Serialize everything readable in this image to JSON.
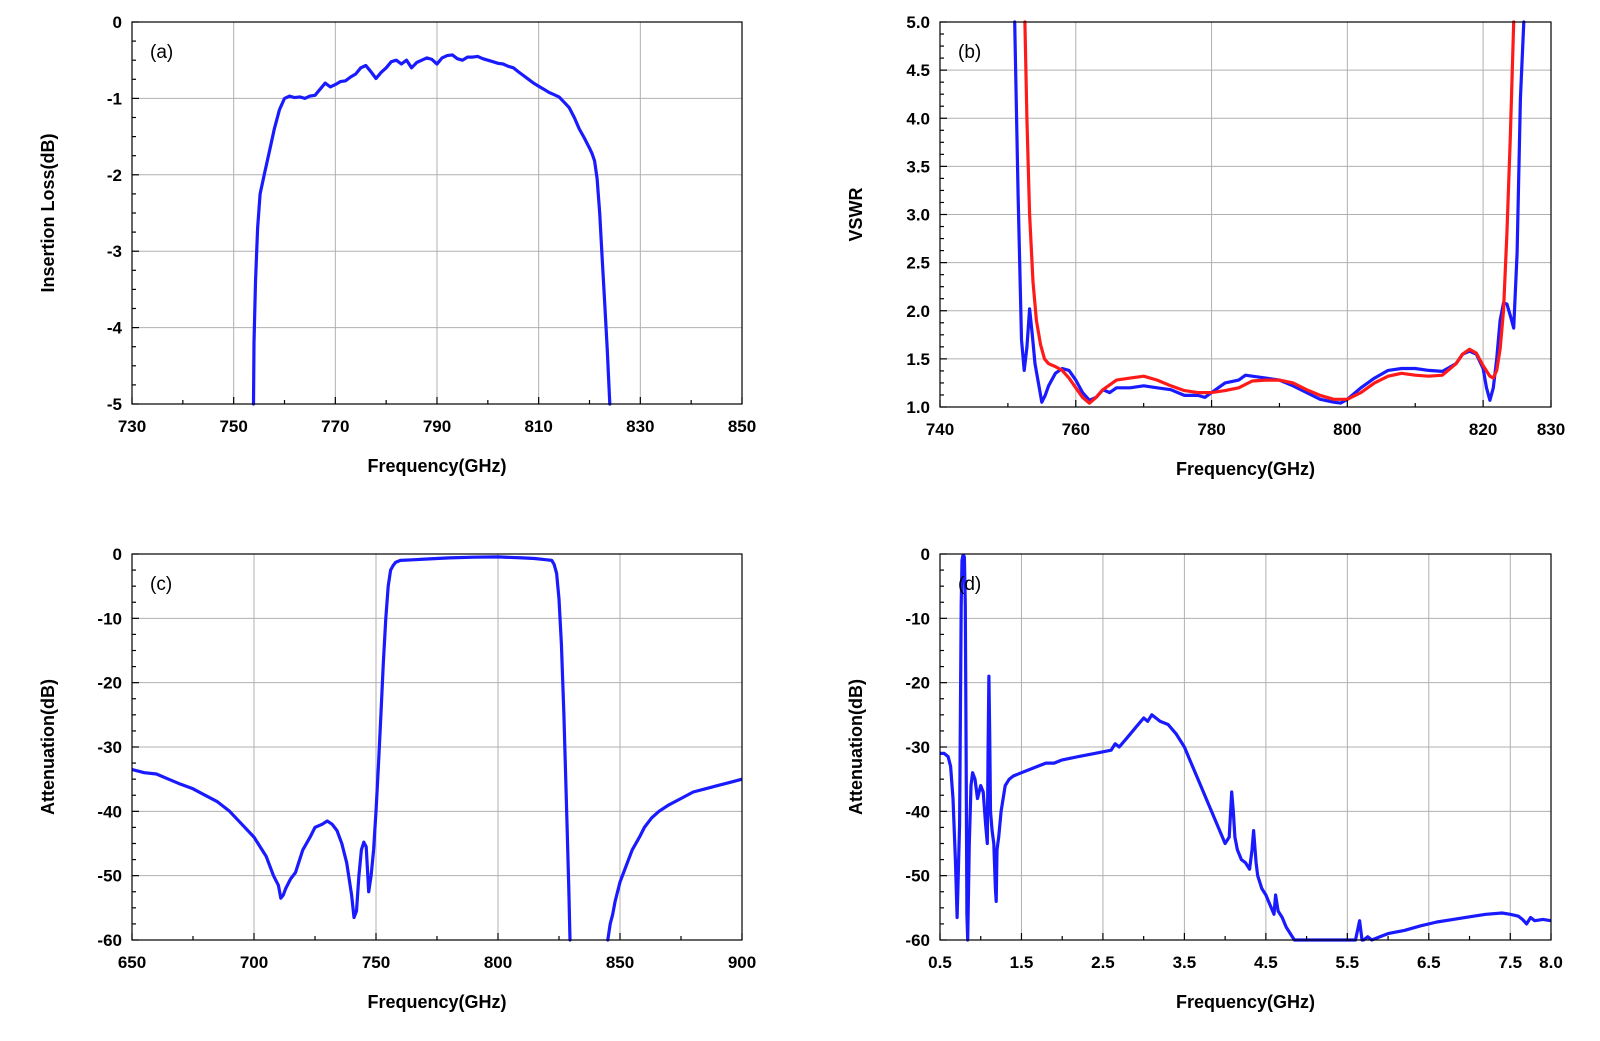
{
  "chart_data": [
    {
      "type": "line",
      "panel_label": "(a)",
      "xlabel": "Frequency(GHz)",
      "ylabel": "Insertion Loss(dB)",
      "xlim": [
        730,
        850
      ],
      "ylim": [
        -5,
        0
      ],
      "xticks": [
        730,
        750,
        770,
        790,
        810,
        830,
        850
      ],
      "xtick_labels": [
        "730",
        "750",
        "770",
        "790",
        "810",
        "830",
        "850"
      ],
      "yticks": [
        0,
        -1,
        -2,
        -3,
        -4,
        -5
      ],
      "ytick_labels": [
        "0",
        "-1",
        "-2",
        "-3",
        "-4",
        "-5"
      ],
      "grid": true,
      "series": [
        {
          "color": "#1a1aff",
          "x": [
            753.9,
            754.0,
            754.3,
            754.7,
            755.2,
            756.0,
            757.0,
            758.0,
            759.0,
            760.0,
            761.0,
            762.0,
            763.0,
            764.0,
            765.0,
            766.0,
            767.0,
            768.0,
            769.0,
            770.0,
            771.0,
            772.0,
            773.0,
            774.0,
            775.0,
            776.0,
            777.0,
            778.0,
            779.0,
            780.0,
            781.0,
            782.0,
            783.0,
            784.0,
            785.0,
            786.0,
            787.0,
            788.0,
            789.0,
            790.0,
            791.0,
            792.0,
            793.0,
            794.0,
            795.0,
            796.0,
            797.0,
            798.0,
            799.0,
            800.0,
            801.0,
            802.0,
            803.0,
            804.0,
            805.0,
            806.0,
            807.0,
            808.0,
            809.0,
            810.0,
            811.0,
            812.0,
            813.0,
            814.0,
            815.0,
            816.0,
            817.0,
            818.0,
            819.0,
            820.0,
            820.5,
            821.0,
            821.5,
            822.0,
            822.5,
            823.0,
            823.5,
            824.0
          ],
          "y": [
            -5.0,
            -4.2,
            -3.4,
            -2.7,
            -2.25,
            -2.0,
            -1.7,
            -1.4,
            -1.15,
            -1.0,
            -0.97,
            -0.99,
            -0.98,
            -1.0,
            -0.97,
            -0.96,
            -0.88,
            -0.8,
            -0.85,
            -0.82,
            -0.78,
            -0.77,
            -0.72,
            -0.68,
            -0.6,
            -0.57,
            -0.65,
            -0.74,
            -0.66,
            -0.6,
            -0.52,
            -0.5,
            -0.55,
            -0.5,
            -0.6,
            -0.53,
            -0.5,
            -0.47,
            -0.49,
            -0.55,
            -0.47,
            -0.44,
            -0.43,
            -0.48,
            -0.5,
            -0.46,
            -0.46,
            -0.45,
            -0.48,
            -0.5,
            -0.52,
            -0.54,
            -0.55,
            -0.58,
            -0.6,
            -0.65,
            -0.7,
            -0.75,
            -0.8,
            -0.84,
            -0.88,
            -0.92,
            -0.95,
            -0.98,
            -1.05,
            -1.12,
            -1.25,
            -1.4,
            -1.52,
            -1.65,
            -1.72,
            -1.82,
            -2.05,
            -2.5,
            -3.1,
            -3.7,
            -4.3,
            -5.0
          ]
        }
      ]
    },
    {
      "type": "line",
      "panel_label": "(b)",
      "xlabel": "Frequency(GHz)",
      "ylabel": "VSWR",
      "xlim": [
        740,
        830
      ],
      "ylim": [
        1.0,
        5.0
      ],
      "xticks": [
        740,
        760,
        780,
        800,
        820,
        830
      ],
      "xtick_labels": [
        "740",
        "760",
        "780",
        "800",
        "820",
        "830"
      ],
      "yticks": [
        1.0,
        1.5,
        2.0,
        2.5,
        3.0,
        3.5,
        4.0,
        4.5,
        5.0
      ],
      "ytick_labels": [
        "1.0",
        "1.5",
        "2.0",
        "2.5",
        "3.0",
        "3.5",
        "4.0",
        "4.5",
        "5.0"
      ],
      "grid": true,
      "series": [
        {
          "color": "#1a1aff",
          "x": [
            751.0,
            751.5,
            752.0,
            752.4,
            752.8,
            753.2,
            753.6,
            754.0,
            754.5,
            755.0,
            755.5,
            756.0,
            757.0,
            758.0,
            759.0,
            760.0,
            761.0,
            762.0,
            763.0,
            764.0,
            765.0,
            766.0,
            768.0,
            770.0,
            772.0,
            774.0,
            776.0,
            778.0,
            779.0,
            780.0,
            782.0,
            784.0,
            785.0,
            786.0,
            788.0,
            790.0,
            792.0,
            794.0,
            796.0,
            798.0,
            799.0,
            800.0,
            802.0,
            804.0,
            806.0,
            808.0,
            810.0,
            812.0,
            814.0,
            816.0,
            817.0,
            818.0,
            819.0,
            820.0,
            820.5,
            821.0,
            821.5,
            822.0,
            822.5,
            823.0,
            823.5,
            824.0,
            824.5,
            825.0,
            825.5,
            826.0
          ],
          "y": [
            5.0,
            3.2,
            1.7,
            1.38,
            1.62,
            2.02,
            1.75,
            1.45,
            1.25,
            1.05,
            1.12,
            1.22,
            1.35,
            1.4,
            1.38,
            1.28,
            1.15,
            1.07,
            1.1,
            1.18,
            1.15,
            1.2,
            1.2,
            1.22,
            1.2,
            1.18,
            1.12,
            1.12,
            1.1,
            1.15,
            1.25,
            1.28,
            1.33,
            1.32,
            1.3,
            1.28,
            1.22,
            1.15,
            1.08,
            1.05,
            1.04,
            1.08,
            1.2,
            1.3,
            1.38,
            1.4,
            1.4,
            1.38,
            1.37,
            1.45,
            1.55,
            1.58,
            1.55,
            1.4,
            1.2,
            1.07,
            1.2,
            1.5,
            1.9,
            2.08,
            2.07,
            1.95,
            1.82,
            2.6,
            4.2,
            5.0
          ]
        },
        {
          "color": "#ff1a1a",
          "x": [
            752.5,
            752.8,
            753.2,
            753.7,
            754.2,
            754.8,
            755.4,
            756.0,
            757.0,
            758.0,
            759.0,
            760.0,
            761.0,
            762.0,
            763.0,
            764.0,
            766.0,
            768.0,
            770.0,
            772.0,
            774.0,
            776.0,
            778.0,
            780.0,
            782.0,
            784.0,
            786.0,
            788.0,
            790.0,
            792.0,
            794.0,
            796.0,
            798.0,
            800.0,
            802.0,
            804.0,
            806.0,
            808.0,
            810.0,
            812.0,
            814.0,
            816.0,
            817.0,
            818.0,
            819.0,
            820.0,
            821.0,
            821.5,
            822.0,
            822.5,
            823.0,
            823.5,
            824.0,
            824.5
          ],
          "y": [
            5.0,
            4.0,
            3.0,
            2.3,
            1.9,
            1.65,
            1.5,
            1.45,
            1.42,
            1.38,
            1.3,
            1.2,
            1.1,
            1.04,
            1.1,
            1.18,
            1.28,
            1.3,
            1.32,
            1.28,
            1.22,
            1.17,
            1.15,
            1.15,
            1.17,
            1.2,
            1.27,
            1.28,
            1.28,
            1.25,
            1.18,
            1.12,
            1.08,
            1.08,
            1.15,
            1.25,
            1.32,
            1.35,
            1.33,
            1.32,
            1.33,
            1.45,
            1.55,
            1.6,
            1.56,
            1.43,
            1.32,
            1.3,
            1.38,
            1.6,
            2.0,
            2.8,
            3.8,
            5.0
          ]
        }
      ]
    },
    {
      "type": "line",
      "panel_label": "(c)",
      "xlabel": "Frequency(GHz)",
      "ylabel": "Attenuation(dB)",
      "xlim": [
        650,
        900
      ],
      "ylim": [
        -60,
        0
      ],
      "xticks": [
        650,
        700,
        750,
        800,
        850,
        900
      ],
      "xtick_labels": [
        "650",
        "700",
        "750",
        "800",
        "850",
        "900"
      ],
      "yticks": [
        0,
        -10,
        -20,
        -30,
        -40,
        -50,
        -60
      ],
      "ytick_labels": [
        "0",
        "-10",
        "-20",
        "-30",
        "-40",
        "-50",
        "-60"
      ],
      "grid": true,
      "series": [
        {
          "color": "#1a1aff",
          "x": [
            650,
            655,
            660,
            665,
            670,
            675,
            680,
            685,
            690,
            695,
            700,
            705,
            708,
            710,
            711,
            712,
            713,
            715,
            717,
            720,
            723,
            725,
            728,
            730,
            732,
            734,
            736,
            738,
            740,
            741,
            742,
            743,
            744,
            745,
            746,
            747,
            748,
            749,
            750,
            751,
            752,
            753,
            754,
            755,
            756,
            757,
            758,
            760,
            765,
            770,
            780,
            790,
            800,
            810,
            815,
            820,
            822,
            823,
            824,
            825,
            826,
            827,
            828,
            829,
            829.5
          ],
          "y": [
            -33.5,
            -34.0,
            -34.2,
            -35.0,
            -35.8,
            -36.5,
            -37.5,
            -38.5,
            -40.0,
            -42.0,
            -44.0,
            -47.0,
            -50.0,
            -51.5,
            -53.5,
            -53.0,
            -52.0,
            -50.5,
            -49.5,
            -46.0,
            -44.0,
            -42.5,
            -42.0,
            -41.5,
            -42.0,
            -43.0,
            -45.0,
            -48.0,
            -53.0,
            -56.5,
            -55.5,
            -50.0,
            -46.0,
            -44.8,
            -45.5,
            -52.5,
            -50.0,
            -46.0,
            -40.0,
            -33.0,
            -25.0,
            -17.0,
            -10.0,
            -5.0,
            -2.5,
            -1.8,
            -1.3,
            -1.0,
            -0.9,
            -0.8,
            -0.6,
            -0.5,
            -0.45,
            -0.6,
            -0.7,
            -0.9,
            -1.0,
            -1.6,
            -3.0,
            -7.0,
            -14.0,
            -25.0,
            -38.0,
            -52.0,
            -60.0
          ]
        },
        {
          "color": "#1a1aff",
          "x": [
            845,
            846,
            847,
            848,
            850,
            852,
            855,
            858,
            860,
            863,
            866,
            870,
            875,
            880,
            885,
            890,
            895,
            900
          ],
          "y": [
            -60.0,
            -57.5,
            -56.0,
            -54.0,
            -51.0,
            -49.0,
            -46.0,
            -44.0,
            -42.5,
            -41.0,
            -40.0,
            -39.0,
            -38.0,
            -37.0,
            -36.5,
            -36.0,
            -35.5,
            -35.0
          ]
        }
      ]
    },
    {
      "type": "line",
      "panel_label": "(d)",
      "xlabel": "Frequency(GHz)",
      "ylabel": "Attenuation(dB)",
      "xlim": [
        0.5,
        8.0
      ],
      "ylim": [
        -60,
        0
      ],
      "xticks": [
        0.5,
        1.5,
        2.5,
        3.5,
        4.5,
        5.5,
        6.5,
        7.5,
        8.0
      ],
      "xtick_labels": [
        "0.5",
        "1.5",
        "2.5",
        "3.5",
        "4.5",
        "5.5",
        "6.5",
        "7.5",
        "8.0"
      ],
      "yticks": [
        0,
        -10,
        -20,
        -30,
        -40,
        -50,
        -60
      ],
      "ytick_labels": [
        "0",
        "-10",
        "-20",
        "-30",
        "-40",
        "-50",
        "-60"
      ],
      "grid": true,
      "series": [
        {
          "color": "#1a1aff",
          "x": [
            0.5,
            0.55,
            0.6,
            0.63,
            0.66,
            0.69,
            0.71,
            0.72,
            0.74,
            0.75,
            0.76,
            0.77,
            0.78,
            0.79,
            0.8,
            0.81,
            0.82,
            0.83,
            0.84,
            0.86,
            0.88,
            0.9,
            0.93,
            0.96,
            1.0,
            1.03,
            1.06,
            1.08,
            1.09,
            1.1,
            1.11,
            1.12,
            1.14,
            1.16,
            1.18,
            1.19,
            1.2,
            1.22,
            1.25,
            1.3,
            1.35,
            1.4,
            1.5,
            1.6,
            1.7,
            1.8,
            1.9,
            2.0,
            2.2,
            2.4,
            2.6,
            2.65,
            2.7,
            2.8,
            2.9,
            3.0,
            3.05,
            3.1,
            3.15,
            3.2,
            3.3,
            3.4,
            3.5,
            3.6,
            3.7,
            3.8,
            3.9,
            4.0,
            4.05,
            4.08,
            4.1,
            4.12,
            4.15,
            4.2,
            4.25,
            4.3,
            4.33,
            4.35,
            4.38,
            4.4,
            4.45,
            4.5,
            4.55,
            4.6,
            4.62,
            4.65,
            4.7,
            4.75,
            4.8,
            4.85,
            4.9,
            4.95,
            5.0,
            5.05,
            5.1,
            5.2,
            5.3,
            5.4,
            5.5,
            5.6,
            5.65,
            5.68,
            5.7,
            5.75,
            5.8,
            5.9,
            6.0,
            6.2,
            6.4,
            6.6,
            6.8,
            7.0,
            7.2,
            7.4,
            7.5,
            7.6,
            7.65,
            7.7,
            7.75,
            7.8,
            7.9,
            8.0
          ],
          "y": [
            -31.0,
            -31.0,
            -31.5,
            -33.0,
            -38.0,
            -48.0,
            -56.5,
            -52.0,
            -42.0,
            -25.0,
            -8.0,
            -1.0,
            -0.3,
            -0.2,
            -0.5,
            -8.0,
            -30.0,
            -56.0,
            -60.0,
            -45.0,
            -36.0,
            -34.0,
            -35.0,
            -38.0,
            -36.0,
            -37.0,
            -42.0,
            -45.0,
            -30.0,
            -19.0,
            -28.0,
            -40.0,
            -43.0,
            -45.0,
            -52.0,
            -54.0,
            -46.0,
            -44.0,
            -40.0,
            -36.0,
            -35.0,
            -34.5,
            -34.0,
            -33.5,
            -33.0,
            -32.5,
            -32.5,
            -32.0,
            -31.5,
            -31.0,
            -30.5,
            -29.5,
            -30.0,
            -28.5,
            -27.0,
            -25.5,
            -26.0,
            -25.0,
            -25.5,
            -26.0,
            -26.5,
            -28.0,
            -30.0,
            -33.0,
            -36.0,
            -39.0,
            -42.0,
            -45.0,
            -44.0,
            -37.0,
            -40.0,
            -44.0,
            -46.0,
            -47.5,
            -48.0,
            -49.0,
            -46.0,
            -43.0,
            -48.0,
            -50.0,
            -52.0,
            -53.0,
            -54.5,
            -56.0,
            -53.0,
            -55.5,
            -56.5,
            -58.0,
            -59.0,
            -60.0,
            -60.0,
            -60.0,
            -60.0,
            -60.0,
            -60.0,
            -60.0,
            -60.0,
            -60.0,
            -60.0,
            -60.0,
            -57.0,
            -60.0,
            -60.0,
            -59.5,
            -60.0,
            -59.5,
            -59.0,
            -58.5,
            -57.8,
            -57.2,
            -56.8,
            -56.4,
            -56.0,
            -55.8,
            -56.0,
            -56.3,
            -56.8,
            -57.5,
            -56.5,
            -57.0,
            -56.8,
            -57.0
          ]
        }
      ]
    }
  ]
}
